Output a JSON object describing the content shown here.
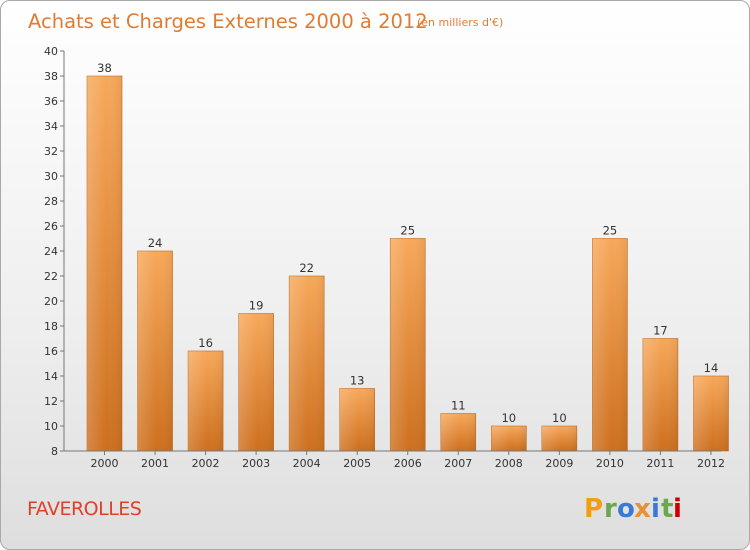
{
  "header": {
    "title": "Achats et Charges Externes 2000 à 2012",
    "unit": "(en milliers d'€)"
  },
  "footer": {
    "commune": "FAVEROLLES",
    "logo_letters": [
      "P",
      "r",
      "o",
      "x",
      "i",
      "t",
      "i"
    ]
  },
  "colors": {
    "bar_top": "#f7a85a",
    "bar_bottom": "#cd6f1e",
    "bar_edge": "#c06a1d",
    "title": "#e07b34",
    "commune": "#e0402a",
    "logo": [
      "#f39c12",
      "#6aa84f",
      "#3c78d8",
      "#e69138",
      "#3c78d8",
      "#6aa84f",
      "#cc0000"
    ]
  },
  "chart_data": {
    "type": "bar",
    "categories": [
      "2000",
      "2001",
      "2002",
      "2003",
      "2004",
      "2005",
      "2006",
      "2007",
      "2008",
      "2009",
      "2010",
      "2011",
      "2012"
    ],
    "values": [
      38,
      24,
      16,
      19,
      22,
      13,
      25,
      11,
      10,
      10,
      25,
      17,
      14
    ],
    "title": "Achats et Charges Externes 2000 à 2012",
    "xlabel": "",
    "ylabel": "",
    "ylim": [
      8,
      40
    ],
    "yticks": [
      8,
      10,
      12,
      14,
      16,
      18,
      20,
      22,
      24,
      26,
      28,
      30,
      32,
      34,
      36,
      38,
      40
    ],
    "grid": false,
    "legend": "none"
  }
}
